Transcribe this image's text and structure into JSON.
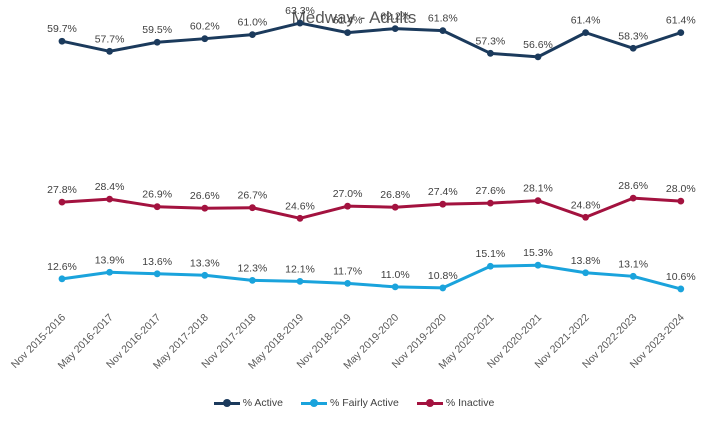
{
  "chart_data": {
    "type": "line",
    "title": "Medway - Adults",
    "xlabel": "",
    "ylabel": "",
    "categories": [
      "Nov 2015-2016",
      "May 2016-2017",
      "Nov 2016-2017",
      "May 2017-2018",
      "Nov 2017-2018",
      "May 2018-2019",
      "Nov 2018-2019",
      "May 2019-2020",
      "Nov 2019-2020",
      "May 2020-2021",
      "Nov 2020-2021",
      "Nov 2021-2022",
      "Nov 2022-2023",
      "Nov 2023-2024"
    ],
    "series": [
      {
        "name": "% Active",
        "color": "#1b3a5c",
        "values": [
          59.7,
          57.7,
          59.5,
          60.2,
          61.0,
          63.3,
          61.4,
          62.2,
          61.8,
          57.3,
          56.6,
          61.4,
          58.3,
          61.4
        ]
      },
      {
        "name": "% Fairly Active",
        "color": "#1aa3dc",
        "values": [
          12.6,
          13.9,
          13.6,
          13.3,
          12.3,
          12.1,
          11.7,
          11.0,
          10.8,
          15.1,
          15.3,
          13.8,
          13.1,
          10.6
        ]
      },
      {
        "name": "% Inactive",
        "color": "#a3123f",
        "values": [
          27.8,
          28.4,
          26.9,
          26.6,
          26.7,
          24.6,
          27.0,
          26.8,
          27.4,
          27.6,
          28.1,
          24.8,
          28.6,
          28.0
        ]
      }
    ],
    "value_format": "0.0%",
    "legend_position": "bottom",
    "grid": false
  }
}
